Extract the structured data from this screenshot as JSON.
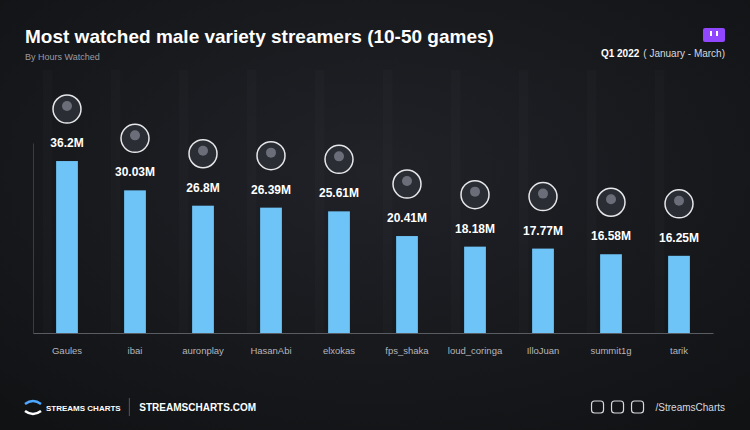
{
  "chart_data": {
    "type": "bar",
    "title": "Most watched male variety streamers (10-50 games)",
    "subtitle": "By Hours Watched",
    "period": "Q1 2022",
    "period_note": "( January - March)",
    "categories": [
      "Gaules",
      "ibai",
      "auronplay",
      "HasanAbi",
      "elxokas",
      "fps_shaka",
      "loud_coringa",
      "IlloJuan",
      "summit1g",
      "tarik"
    ],
    "values": [
      36.2,
      30.03,
      26.8,
      26.39,
      25.61,
      20.41,
      18.18,
      17.77,
      16.58,
      16.25
    ],
    "value_labels": [
      "36.2M",
      "30.03M",
      "26.8M",
      "26.39M",
      "25.61M",
      "20.41M",
      "18.18M",
      "17.77M",
      "16.58M",
      "16.25M"
    ],
    "color": "#6ec4f6",
    "ylim": [
      0,
      40
    ],
    "data_labels": true,
    "tick_labels": "x"
  },
  "footer": {
    "brand": "STREAMS CHARTS",
    "website": "STREAMSCHARTS.COM",
    "handle": "/StreamsCharts"
  }
}
